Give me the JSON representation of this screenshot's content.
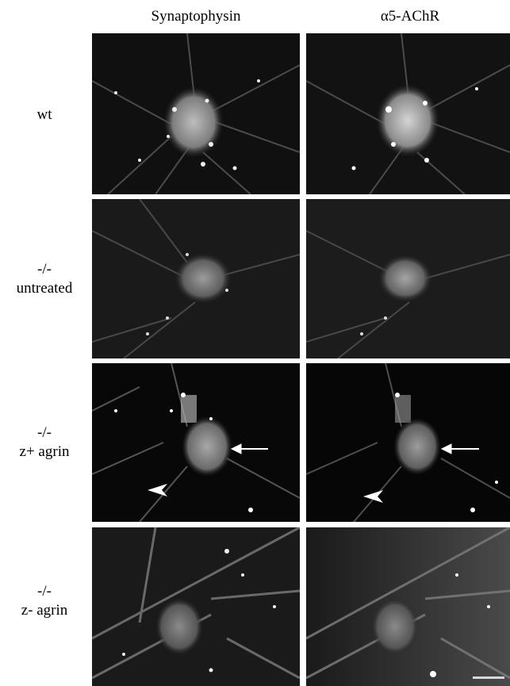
{
  "columns": [
    "Synaptophysin",
    "α5-AChR"
  ],
  "rows": [
    {
      "line1": "wt",
      "line2": ""
    },
    {
      "line1": "-/-",
      "line2": "untreated"
    },
    {
      "line1": "-/-",
      "line2": "z+ agrin"
    },
    {
      "line1": "-/-",
      "line2": "z- agrin"
    }
  ]
}
